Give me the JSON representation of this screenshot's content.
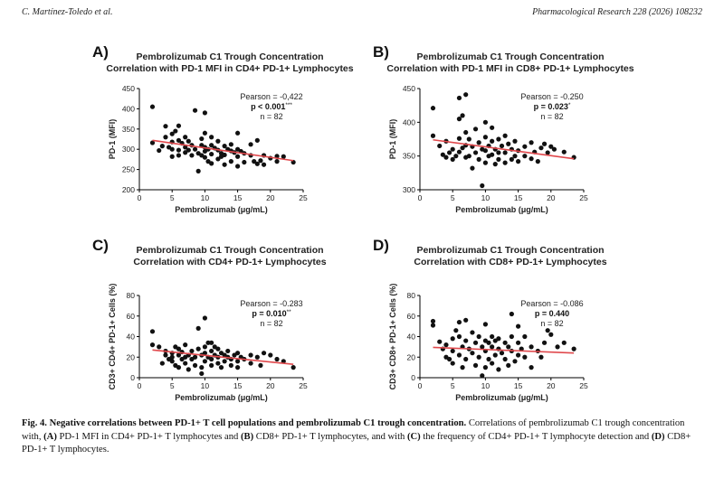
{
  "header": {
    "left": "C. Martínez-Toledo et al.",
    "right": "Pharmacological Research 228 (2026) 108232"
  },
  "chart_data": [
    {
      "type": "scatter",
      "panel": "A)",
      "title_line1": "Pembrolizumab C1 Trough Concentration",
      "title_line2": "Correlation with PD-1 MFI in CD4+ PD-1+ Lymphocytes",
      "xlabel": "Pembrolizumab (μg/mL)",
      "ylabel": "PD-1 (MFI)",
      "xlim": [
        0,
        25
      ],
      "ylim": [
        200,
        450
      ],
      "xticks": [
        0,
        5,
        10,
        15,
        20,
        25
      ],
      "yticks": [
        200,
        250,
        300,
        350,
        400,
        450
      ],
      "stats": {
        "pearson": "Pearson = -0,422",
        "p": "p < 0.001",
        "p_sup": "***",
        "n": "n = 82"
      },
      "line": {
        "x": [
          2,
          23.5
        ],
        "y": [
          322,
          272
        ],
        "color": "#e0484c"
      },
      "points": [
        [
          2,
          405
        ],
        [
          2,
          316
        ],
        [
          3,
          297
        ],
        [
          3.5,
          308
        ],
        [
          4,
          357
        ],
        [
          4,
          330
        ],
        [
          4.5,
          305
        ],
        [
          5,
          338
        ],
        [
          5,
          318
        ],
        [
          5,
          300
        ],
        [
          5,
          282
        ],
        [
          5.5,
          345
        ],
        [
          6,
          358
        ],
        [
          6,
          322
        ],
        [
          6,
          298
        ],
        [
          6,
          285
        ],
        [
          6.5,
          315
        ],
        [
          7,
          330
        ],
        [
          7,
          305
        ],
        [
          7,
          292
        ],
        [
          7.5,
          320
        ],
        [
          7.5,
          298
        ],
        [
          8,
          310
        ],
        [
          8,
          285
        ],
        [
          8.5,
          396
        ],
        [
          8.5,
          300
        ],
        [
          9,
          290
        ],
        [
          9,
          246
        ],
        [
          9.5,
          326
        ],
        [
          9.5,
          310
        ],
        [
          9.5,
          285
        ],
        [
          10,
          390
        ],
        [
          10,
          340
        ],
        [
          10,
          305
        ],
        [
          10,
          295
        ],
        [
          10,
          280
        ],
        [
          10.5,
          300
        ],
        [
          10.5,
          270
        ],
        [
          11,
          330
        ],
        [
          11,
          310
        ],
        [
          11,
          288
        ],
        [
          11,
          265
        ],
        [
          11.5,
          303
        ],
        [
          12,
          320
        ],
        [
          12,
          298
        ],
        [
          12,
          276
        ],
        [
          12.5,
          290
        ],
        [
          12.5,
          282
        ],
        [
          13,
          308
        ],
        [
          13,
          286
        ],
        [
          13,
          262
        ],
        [
          13.5,
          300
        ],
        [
          14,
          312
        ],
        [
          14,
          296
        ],
        [
          14,
          270
        ],
        [
          14.5,
          292
        ],
        [
          15,
          340
        ],
        [
          15,
          300
        ],
        [
          15,
          282
        ],
        [
          15,
          258
        ],
        [
          15.5,
          295
        ],
        [
          16,
          290
        ],
        [
          16,
          268
        ],
        [
          17,
          312
        ],
        [
          17,
          285
        ],
        [
          17.5,
          270
        ],
        [
          18,
          322
        ],
        [
          18,
          264
        ],
        [
          18.5,
          272
        ],
        [
          19,
          285
        ],
        [
          19,
          262
        ],
        [
          20,
          278
        ],
        [
          21,
          283
        ],
        [
          21,
          270
        ],
        [
          22,
          282
        ],
        [
          23.5,
          268
        ]
      ]
    },
    {
      "type": "scatter",
      "panel": "B)",
      "title_line1": "Pembrolizumab C1 Trough Concentration",
      "title_line2": "Correlation with PD-1 MFI in CD8+ PD-1+ Lymphocytes",
      "xlabel": "Pembrolizumab (μg/mL)",
      "ylabel": "PD-1 (MFI)",
      "xlim": [
        0,
        25
      ],
      "ylim": [
        300,
        450
      ],
      "xticks": [
        0,
        5,
        10,
        15,
        20,
        25
      ],
      "yticks": [
        300,
        350,
        400,
        450
      ],
      "stats": {
        "pearson": "Pearson = -0.250",
        "p": "p = 0.023",
        "p_sup": "*",
        "n": "n = 82"
      },
      "line": {
        "x": [
          2,
          23.5
        ],
        "y": [
          374,
          346
        ],
        "color": "#e0484c"
      },
      "points": [
        [
          2,
          421
        ],
        [
          2,
          380
        ],
        [
          3,
          365
        ],
        [
          3.5,
          352
        ],
        [
          4,
          348
        ],
        [
          4,
          372
        ],
        [
          4.5,
          355
        ],
        [
          5,
          360
        ],
        [
          5,
          345
        ],
        [
          5.5,
          350
        ],
        [
          6,
          436
        ],
        [
          6,
          405
        ],
        [
          6,
          376
        ],
        [
          6,
          356
        ],
        [
          6.5,
          362
        ],
        [
          6.5,
          410
        ],
        [
          7,
          385
        ],
        [
          7,
          366
        ],
        [
          7,
          348
        ],
        [
          7,
          441
        ],
        [
          7.5,
          375
        ],
        [
          7.5,
          350
        ],
        [
          8,
          364
        ],
        [
          8,
          332
        ],
        [
          8.5,
          355
        ],
        [
          8.5,
          390
        ],
        [
          9,
          370
        ],
        [
          9,
          345
        ],
        [
          9.5,
          306
        ],
        [
          9.5,
          360
        ],
        [
          10,
          400
        ],
        [
          10,
          378
        ],
        [
          10,
          358
        ],
        [
          10,
          340
        ],
        [
          10.5,
          365
        ],
        [
          10.5,
          350
        ],
        [
          11,
          392
        ],
        [
          11,
          372
        ],
        [
          11,
          352
        ],
        [
          11.5,
          360
        ],
        [
          11.5,
          338
        ],
        [
          12,
          375
        ],
        [
          12,
          355
        ],
        [
          12,
          345
        ],
        [
          12.5,
          365
        ],
        [
          13,
          380
        ],
        [
          13,
          355
        ],
        [
          13,
          340
        ],
        [
          13.5,
          368
        ],
        [
          14,
          360
        ],
        [
          14,
          345
        ],
        [
          14.5,
          372
        ],
        [
          14.5,
          350
        ],
        [
          15,
          358
        ],
        [
          15,
          342
        ],
        [
          16,
          364
        ],
        [
          16,
          350
        ],
        [
          17,
          370
        ],
        [
          17,
          346
        ],
        [
          17.5,
          356
        ],
        [
          18,
          342
        ],
        [
          18.5,
          362
        ],
        [
          19,
          368
        ],
        [
          19.5,
          355
        ],
        [
          20,
          364
        ],
        [
          20.5,
          360
        ],
        [
          22,
          356
        ],
        [
          23.5,
          348
        ]
      ]
    },
    {
      "type": "scatter",
      "panel": "C)",
      "title_line1": "Pembrolizumab C1 Trough Concentration",
      "title_line2": "Correlation with CD4+ PD-1+ Lymphocytes",
      "xlabel": "Pembrolizumab (μg/mL)",
      "ylabel": "CD3+ CD4+ PD-1+ Cells (%)",
      "xlim": [
        0,
        25
      ],
      "ylim": [
        0,
        80
      ],
      "xticks": [
        0,
        5,
        10,
        15,
        20,
        25
      ],
      "yticks": [
        0,
        20,
        40,
        60,
        80
      ],
      "stats": {
        "pearson": "Pearson = -0.283",
        "p": "p = 0.010",
        "p_sup": "**",
        "n": "n = 82"
      },
      "line": {
        "x": [
          2,
          23.5
        ],
        "y": [
          27,
          13
        ],
        "color": "#e0484c"
      },
      "points": [
        [
          2,
          45
        ],
        [
          2,
          32
        ],
        [
          3,
          30
        ],
        [
          3.5,
          14
        ],
        [
          4,
          22
        ],
        [
          4,
          26
        ],
        [
          4.5,
          18
        ],
        [
          5,
          24
        ],
        [
          5,
          20
        ],
        [
          5,
          16
        ],
        [
          5.5,
          30
        ],
        [
          5.5,
          12
        ],
        [
          6,
          28
        ],
        [
          6,
          22
        ],
        [
          6,
          10
        ],
        [
          6.5,
          25
        ],
        [
          6.5,
          18
        ],
        [
          7,
          32
        ],
        [
          7,
          20
        ],
        [
          7,
          14
        ],
        [
          7.5,
          22
        ],
        [
          7.5,
          8
        ],
        [
          8,
          26
        ],
        [
          8,
          18
        ],
        [
          8.5,
          20
        ],
        [
          8.5,
          12
        ],
        [
          9,
          28
        ],
        [
          9,
          48
        ],
        [
          9.5,
          22
        ],
        [
          9.5,
          10
        ],
        [
          9.5,
          4
        ],
        [
          10,
          58
        ],
        [
          10,
          30
        ],
        [
          10,
          24
        ],
        [
          10,
          16
        ],
        [
          10.5,
          34
        ],
        [
          10.5,
          20
        ],
        [
          11,
          34
        ],
        [
          11,
          26
        ],
        [
          11,
          18
        ],
        [
          11,
          12
        ],
        [
          11.5,
          30
        ],
        [
          11.5,
          22
        ],
        [
          12,
          28
        ],
        [
          12,
          20
        ],
        [
          12,
          14
        ],
        [
          12.5,
          24
        ],
        [
          12.5,
          10
        ],
        [
          13,
          22
        ],
        [
          13,
          16
        ],
        [
          13.5,
          26
        ],
        [
          13.5,
          20
        ],
        [
          14,
          18
        ],
        [
          14,
          12
        ],
        [
          14.5,
          22
        ],
        [
          15,
          24
        ],
        [
          15,
          16
        ],
        [
          15,
          10
        ],
        [
          15.5,
          20
        ],
        [
          16,
          18
        ],
        [
          17,
          22
        ],
        [
          17,
          14
        ],
        [
          18,
          20
        ],
        [
          18.5,
          12
        ],
        [
          19,
          24
        ],
        [
          20,
          22
        ],
        [
          21,
          18
        ],
        [
          22,
          16
        ],
        [
          23.5,
          10
        ]
      ]
    },
    {
      "type": "scatter",
      "panel": "D)",
      "title_line1": "Pembrolizumab C1 Trough Concentration",
      "title_line2": "Correlation with CD8+ PD-1+ Lymphocytes",
      "xlabel": "Pembrolizumab (μg/mL)",
      "ylabel": "CD3+ CD8+ PD-1+ Cells (%)",
      "xlim": [
        0,
        25
      ],
      "ylim": [
        0,
        80
      ],
      "xticks": [
        0,
        5,
        10,
        15,
        20,
        25
      ],
      "yticks": [
        0,
        20,
        40,
        60,
        80
      ],
      "stats": {
        "pearson": "Pearson = -0.086",
        "p": "p = 0.440",
        "p_sup": "",
        "n": "n = 82"
      },
      "line": {
        "x": [
          2,
          23.5
        ],
        "y": [
          29.5,
          24
        ],
        "color": "#e0484c"
      },
      "points": [
        [
          2,
          55
        ],
        [
          2,
          51
        ],
        [
          3,
          35
        ],
        [
          3.5,
          28
        ],
        [
          4,
          20
        ],
        [
          4,
          32
        ],
        [
          4.5,
          18
        ],
        [
          5,
          38
        ],
        [
          5,
          26
        ],
        [
          5,
          14
        ],
        [
          5.5,
          46
        ],
        [
          6,
          54
        ],
        [
          6,
          40
        ],
        [
          6,
          22
        ],
        [
          6.5,
          30
        ],
        [
          6.5,
          10
        ],
        [
          7,
          56
        ],
        [
          7,
          36
        ],
        [
          7,
          18
        ],
        [
          7.5,
          28
        ],
        [
          8,
          44
        ],
        [
          8,
          24
        ],
        [
          8.5,
          12
        ],
        [
          8.5,
          34
        ],
        [
          9,
          40
        ],
        [
          9,
          20
        ],
        [
          9.5,
          2
        ],
        [
          9.5,
          30
        ],
        [
          10,
          52
        ],
        [
          10,
          36
        ],
        [
          10,
          26
        ],
        [
          10,
          10
        ],
        [
          10.5,
          34
        ],
        [
          10.5,
          18
        ],
        [
          11,
          40
        ],
        [
          11,
          30
        ],
        [
          11,
          14
        ],
        [
          11.5,
          36
        ],
        [
          11.5,
          22
        ],
        [
          12,
          38
        ],
        [
          12,
          28
        ],
        [
          12,
          8
        ],
        [
          12.5,
          24
        ],
        [
          13,
          34
        ],
        [
          13,
          18
        ],
        [
          13.5,
          30
        ],
        [
          13.5,
          12
        ],
        [
          14,
          62
        ],
        [
          14,
          40
        ],
        [
          14,
          26
        ],
        [
          14.5,
          16
        ],
        [
          15,
          50
        ],
        [
          15,
          34
        ],
        [
          15,
          22
        ],
        [
          15.5,
          28
        ],
        [
          16,
          40
        ],
        [
          16,
          20
        ],
        [
          17,
          30
        ],
        [
          17,
          10
        ],
        [
          18,
          26
        ],
        [
          18.5,
          20
        ],
        [
          19,
          34
        ],
        [
          19.5,
          46
        ],
        [
          20,
          42
        ],
        [
          21,
          30
        ],
        [
          22,
          34
        ],
        [
          23.5,
          28
        ]
      ]
    }
  ],
  "caption": {
    "bold": "Fig. 4. Negative correlations between PD-1+ T cell populations and pembrolizumab C1 trough concentration.",
    "t1": " Correlations of pembrolizumab C1 trough concentration with, ",
    "a": "(A)",
    "t2": " PD-1 MFI in CD4+ PD-1+ T lymphocytes and ",
    "b": "(B)",
    "t3": " CD8+ PD-1+ T lymphocytes, and with ",
    "c": "(C)",
    "t4": " the frequency of CD4+ PD-1+ T lymphocyte detection and ",
    "d": "(D)",
    "t5": " CD8+ PD-1+ T lymphocytes."
  }
}
